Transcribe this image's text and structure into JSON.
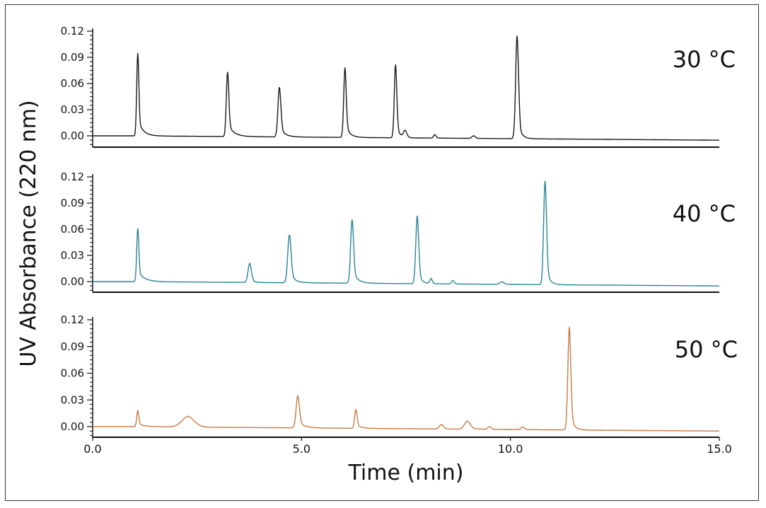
{
  "chart_data": {
    "type": "line",
    "xlabel": "Time (min)",
    "ylabel": "UV Absorbance (220 nm)",
    "xlim": [
      0,
      15
    ],
    "xticks": [
      "0.0",
      "5.0",
      "10.0",
      "15.0"
    ],
    "xtick_values": [
      0,
      5,
      10,
      15
    ],
    "grid": false,
    "panels": [
      {
        "label": "30 °C",
        "color": "#1a1a1a",
        "ylim": [
          -0.01,
          0.12
        ],
        "yticks": [
          "0.00",
          "0.03",
          "0.06",
          "0.09",
          "0.12"
        ],
        "ytick_values": [
          0,
          0.03,
          0.06,
          0.09,
          0.12
        ],
        "baseline_end": -0.005,
        "peaks": [
          {
            "t": 1.08,
            "h": 0.095,
            "w": 0.025,
            "tail": 0.12
          },
          {
            "t": 3.23,
            "h": 0.074,
            "w": 0.03,
            "tail": 0.14
          },
          {
            "t": 4.47,
            "h": 0.057,
            "w": 0.035,
            "tail": 0.12
          },
          {
            "t": 6.04,
            "h": 0.08,
            "w": 0.03,
            "tail": 0.1
          },
          {
            "t": 7.25,
            "h": 0.084,
            "w": 0.03,
            "tail": 0.08
          },
          {
            "t": 7.48,
            "h": 0.008,
            "w": 0.04,
            "tail": 0.05
          },
          {
            "t": 8.19,
            "h": 0.004,
            "w": 0.03,
            "tail": 0.05
          },
          {
            "t": 9.12,
            "h": 0.003,
            "w": 0.04,
            "tail": 0.05
          },
          {
            "t": 10.16,
            "h": 0.118,
            "w": 0.035,
            "tail": 0.08
          }
        ]
      },
      {
        "label": "40 °C",
        "color": "#2b8497",
        "ylim": [
          -0.01,
          0.12
        ],
        "yticks": [
          "0.00",
          "0.03",
          "0.06",
          "0.09",
          "0.12"
        ],
        "ytick_values": [
          0,
          0.03,
          0.06,
          0.09,
          0.12
        ],
        "baseline_end": -0.005,
        "peaks": [
          {
            "t": 1.08,
            "h": 0.061,
            "w": 0.025,
            "tail": 0.15
          },
          {
            "t": 3.76,
            "h": 0.022,
            "w": 0.04,
            "tail": 0.08
          },
          {
            "t": 4.71,
            "h": 0.055,
            "w": 0.04,
            "tail": 0.12
          },
          {
            "t": 6.21,
            "h": 0.073,
            "w": 0.035,
            "tail": 0.12
          },
          {
            "t": 7.77,
            "h": 0.078,
            "w": 0.035,
            "tail": 0.08
          },
          {
            "t": 8.1,
            "h": 0.006,
            "w": 0.03,
            "tail": 0.05
          },
          {
            "t": 8.62,
            "h": 0.004,
            "w": 0.03,
            "tail": 0.05
          },
          {
            "t": 9.8,
            "h": 0.003,
            "w": 0.05,
            "tail": 0.05
          },
          {
            "t": 10.83,
            "h": 0.119,
            "w": 0.035,
            "tail": 0.08
          }
        ]
      },
      {
        "label": "50 °C",
        "color": "#c87a45",
        "ylim": [
          -0.01,
          0.12
        ],
        "yticks": [
          "0.00",
          "0.03",
          "0.06",
          "0.09",
          "0.12"
        ],
        "ytick_values": [
          0,
          0.03,
          0.06,
          0.09,
          0.12
        ],
        "baseline_end": -0.005,
        "peaks": [
          {
            "t": 1.08,
            "h": 0.018,
            "w": 0.025,
            "tail": 0.15
          },
          {
            "t": 2.29,
            "h": 0.012,
            "w": 0.15,
            "tail": 0.12
          },
          {
            "t": 4.91,
            "h": 0.036,
            "w": 0.04,
            "tail": 0.15
          },
          {
            "t": 6.3,
            "h": 0.021,
            "w": 0.03,
            "tail": 0.12
          },
          {
            "t": 8.35,
            "h": 0.005,
            "w": 0.05,
            "tail": 0.08
          },
          {
            "t": 8.97,
            "h": 0.009,
            "w": 0.07,
            "tail": 0.15
          },
          {
            "t": 9.5,
            "h": 0.003,
            "w": 0.04,
            "tail": 0.05
          },
          {
            "t": 10.3,
            "h": 0.003,
            "w": 0.04,
            "tail": 0.05
          },
          {
            "t": 11.41,
            "h": 0.116,
            "w": 0.035,
            "tail": 0.08
          }
        ]
      }
    ]
  }
}
